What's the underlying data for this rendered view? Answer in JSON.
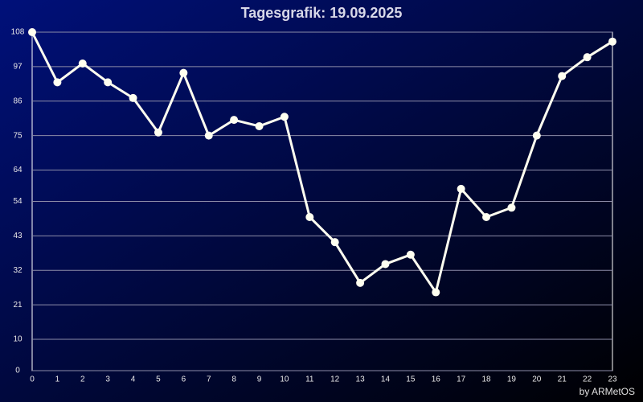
{
  "chart_data": {
    "type": "line",
    "title": "Tagesgrafik: 19.09.2025",
    "credit": "by ARMetOS",
    "x": [
      0,
      1,
      2,
      3,
      4,
      5,
      6,
      7,
      8,
      9,
      10,
      11,
      12,
      13,
      14,
      15,
      16,
      17,
      18,
      19,
      20,
      21,
      22,
      23
    ],
    "series": [
      {
        "name": "Tagesgrafik",
        "color": "#fffff0",
        "values": [
          108,
          92,
          98,
          92,
          87,
          76,
          95,
          75,
          80,
          78,
          81,
          49,
          41,
          28,
          34,
          37,
          25,
          58,
          49,
          52,
          75,
          94,
          100,
          105
        ]
      }
    ],
    "xlim": [
      0,
      23
    ],
    "xticks": [
      0,
      1,
      2,
      3,
      4,
      5,
      6,
      7,
      8,
      9,
      10,
      11,
      12,
      13,
      14,
      15,
      16,
      17,
      18,
      19,
      20,
      21,
      22,
      23
    ],
    "ylim": [
      0,
      108
    ],
    "yticks": [
      0,
      10,
      21,
      32,
      43,
      54,
      64,
      75,
      86,
      97,
      108
    ],
    "grid": true
  }
}
